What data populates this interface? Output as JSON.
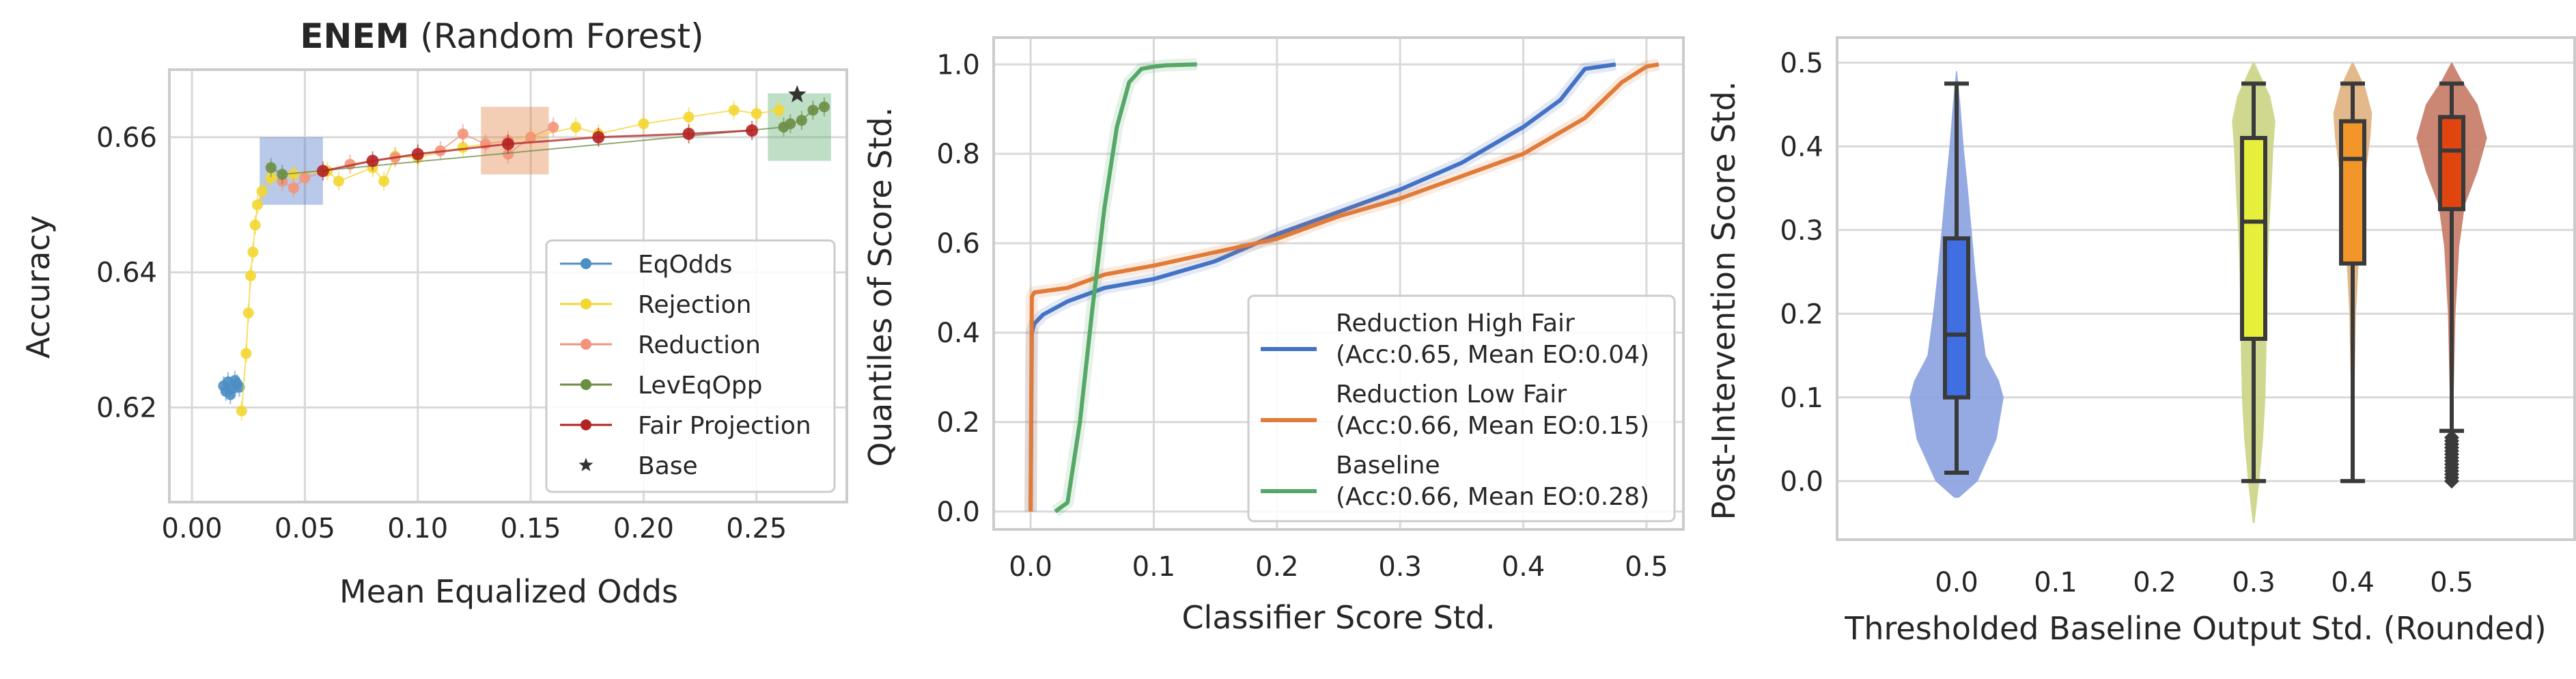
{
  "chart_data": [
    {
      "type": "scatter",
      "title_bold": "ENEM",
      "title_rest": " (Random Forest)",
      "xlabel": "Mean Equalized Odds",
      "ylabel": "Accuracy",
      "xlim": [
        -0.01,
        0.29
      ],
      "ylim": [
        0.606,
        0.67
      ],
      "xticks": [
        "0.00",
        "0.05",
        "0.10",
        "0.15",
        "0.20",
        "0.25"
      ],
      "yticks": [
        "0.62",
        "0.64",
        "0.66"
      ],
      "grid": true,
      "legend_position": "lower-right",
      "series": [
        {
          "name": "EqOdds",
          "color": "#4c8fc4",
          "marker": "circle",
          "points": [
            [
              0.014,
              0.6232
            ],
            [
              0.016,
              0.6238
            ],
            [
              0.018,
              0.6228
            ],
            [
              0.02,
              0.6235
            ],
            [
              0.015,
              0.6224
            ],
            [
              0.019,
              0.624
            ],
            [
              0.021,
              0.623
            ],
            [
              0.017,
              0.6219
            ]
          ]
        },
        {
          "name": "Rejection",
          "color": "#f3d631",
          "marker": "circle",
          "points": [
            [
              0.022,
              0.6195
            ],
            [
              0.024,
              0.628
            ],
            [
              0.025,
              0.634
            ],
            [
              0.026,
              0.6395
            ],
            [
              0.027,
              0.643
            ],
            [
              0.028,
              0.647
            ],
            [
              0.029,
              0.65
            ],
            [
              0.031,
              0.652
            ],
            [
              0.035,
              0.654
            ],
            [
              0.045,
              0.6545
            ],
            [
              0.06,
              0.655
            ],
            [
              0.08,
              0.6555
            ],
            [
              0.1,
              0.657
            ],
            [
              0.12,
              0.6585
            ],
            [
              0.15,
              0.66
            ],
            [
              0.17,
              0.6615
            ],
            [
              0.2,
              0.662
            ],
            [
              0.22,
              0.663
            ],
            [
              0.24,
              0.664
            ],
            [
              0.25,
              0.6635
            ],
            [
              0.26,
              0.664
            ],
            [
              0.065,
              0.6535
            ],
            [
              0.085,
              0.6535
            ],
            [
              0.09,
              0.6572
            ],
            [
              0.18,
              0.6605
            ]
          ]
        },
        {
          "name": "Reduction",
          "color": "#f2937a",
          "marker": "circle",
          "points": [
            [
              0.04,
              0.6535
            ],
            [
              0.045,
              0.6525
            ],
            [
              0.05,
              0.654
            ],
            [
              0.07,
              0.656
            ],
            [
              0.09,
              0.657
            ],
            [
              0.11,
              0.658
            ],
            [
              0.13,
              0.659
            ],
            [
              0.14,
              0.6595
            ],
            [
              0.15,
              0.66
            ],
            [
              0.12,
              0.6605
            ],
            [
              0.16,
              0.6615
            ],
            [
              0.14,
              0.6575
            ]
          ]
        },
        {
          "name": "LevEqOpp",
          "color": "#6b8e45",
          "marker": "circle",
          "points": [
            [
              0.035,
              0.6555
            ],
            [
              0.04,
              0.6545
            ],
            [
              0.262,
              0.6615
            ],
            [
              0.265,
              0.662
            ],
            [
              0.27,
              0.6625
            ],
            [
              0.275,
              0.664
            ],
            [
              0.28,
              0.6645
            ]
          ]
        },
        {
          "name": "Fair Projection",
          "color": "#b22222",
          "marker": "circle",
          "points": [
            [
              0.058,
              0.655
            ],
            [
              0.08,
              0.6565
            ],
            [
              0.1,
              0.6575
            ],
            [
              0.14,
              0.659
            ],
            [
              0.18,
              0.66
            ],
            [
              0.22,
              0.6605
            ],
            [
              0.248,
              0.661
            ]
          ]
        },
        {
          "name": "Base",
          "color": "#333333",
          "marker": "star",
          "points": [
            [
              0.268,
              0.6663
            ]
          ]
        }
      ],
      "annotations": [
        {
          "kind": "box",
          "color": "#4472c4",
          "x": [
            0.03,
            0.058
          ],
          "y": [
            0.65,
            0.66
          ]
        },
        {
          "kind": "box",
          "color": "#e07b39",
          "x": [
            0.128,
            0.158
          ],
          "y": [
            0.6545,
            0.6645
          ]
        },
        {
          "kind": "box",
          "color": "#55a868",
          "x": [
            0.255,
            0.283
          ],
          "y": [
            0.6565,
            0.6665
          ]
        }
      ]
    },
    {
      "type": "line",
      "xlabel": "Classifier Score Std.",
      "ylabel": "Quantiles of Score Std.",
      "xlim": [
        -0.03,
        0.53
      ],
      "ylim": [
        -0.04,
        1.06
      ],
      "xticks": [
        "0.0",
        "0.1",
        "0.2",
        "0.3",
        "0.4",
        "0.5"
      ],
      "yticks": [
        "0.0",
        "0.2",
        "0.4",
        "0.6",
        "0.8",
        "1.0"
      ],
      "grid": true,
      "legend_position": "lower-right",
      "series": [
        {
          "name_line1": "Reduction High Fair",
          "name_line2": "(Acc:0.65, Mean EO:0.04)",
          "color": "#4472c4",
          "x": [
            0,
            0.001,
            0.003,
            0.01,
            0.03,
            0.06,
            0.1,
            0.15,
            0.2,
            0.25,
            0.3,
            0.35,
            0.4,
            0.43,
            0.45,
            0.475
          ],
          "y": [
            0,
            0.4,
            0.42,
            0.44,
            0.47,
            0.5,
            0.52,
            0.56,
            0.62,
            0.67,
            0.72,
            0.78,
            0.86,
            0.92,
            0.99,
            1.0
          ]
        },
        {
          "name_line1": "Reduction Low Fair",
          "name_line2": "(Acc:0.66, Mean EO:0.15)",
          "color": "#e07b39",
          "x": [
            0,
            0.001,
            0.003,
            0.03,
            0.06,
            0.1,
            0.15,
            0.2,
            0.25,
            0.3,
            0.35,
            0.4,
            0.45,
            0.48,
            0.5,
            0.51
          ],
          "y": [
            0,
            0.48,
            0.49,
            0.5,
            0.53,
            0.55,
            0.58,
            0.61,
            0.66,
            0.7,
            0.75,
            0.8,
            0.88,
            0.96,
            0.995,
            1.0
          ]
        },
        {
          "name_line1": "Baseline",
          "name_line2": "(Acc:0.66, Mean EO:0.28)",
          "color": "#55a868",
          "x": [
            0.02,
            0.03,
            0.04,
            0.05,
            0.06,
            0.07,
            0.08,
            0.09,
            0.1,
            0.11,
            0.135
          ],
          "y": [
            0.0,
            0.02,
            0.2,
            0.45,
            0.68,
            0.86,
            0.96,
            0.99,
            0.995,
            0.998,
            1.0
          ]
        }
      ]
    },
    {
      "type": "violin",
      "xlabel": "Thresholded Baseline Output Std. (Rounded)",
      "ylabel": "Post-Intervention Score Std.",
      "categories": [
        "0.0",
        "0.1",
        "0.2",
        "0.3",
        "0.4",
        "0.5"
      ],
      "ylim": [
        -0.07,
        0.53
      ],
      "yticks": [
        "0.0",
        "0.1",
        "0.2",
        "0.3",
        "0.4",
        "0.5"
      ],
      "grid": true,
      "groups": [
        {
          "category": "0.0",
          "violin_color": "#8fa5e0",
          "box_color": "#3f6fe0",
          "min": 0.01,
          "q1": 0.1,
          "median": 0.175,
          "q3": 0.29,
          "max": 0.475,
          "density_y": [
            -0.02,
            0.0,
            0.05,
            0.1,
            0.12,
            0.15,
            0.2,
            0.25,
            0.3,
            0.35,
            0.4,
            0.45,
            0.49
          ],
          "density_w": [
            0.05,
            0.45,
            0.85,
            1.0,
            0.9,
            0.62,
            0.5,
            0.4,
            0.32,
            0.24,
            0.15,
            0.08,
            0.01
          ],
          "width_frac": 0.95
        },
        {
          "category": "0.3",
          "violin_color": "#cdd68a",
          "box_color": "#e6ef3a",
          "min": 0.0,
          "q1": 0.17,
          "median": 0.31,
          "q3": 0.41,
          "max": 0.475,
          "density_y": [
            -0.05,
            0.0,
            0.05,
            0.1,
            0.15,
            0.2,
            0.25,
            0.3,
            0.35,
            0.4,
            0.43,
            0.46,
            0.5
          ],
          "density_w": [
            0.02,
            0.12,
            0.2,
            0.25,
            0.27,
            0.28,
            0.3,
            0.33,
            0.38,
            0.42,
            0.46,
            0.35,
            0.02
          ],
          "width_frac": 0.95
        },
        {
          "category": "0.4",
          "violin_color": "#e2b585",
          "box_color": "#f2962a",
          "min": 0.0,
          "q1": 0.26,
          "median": 0.385,
          "q3": 0.43,
          "max": 0.475,
          "density_y": [
            0.0,
            0.1,
            0.2,
            0.28,
            0.33,
            0.38,
            0.41,
            0.44,
            0.47,
            0.5
          ],
          "density_w": [
            0.02,
            0.04,
            0.08,
            0.16,
            0.24,
            0.34,
            0.42,
            0.46,
            0.3,
            0.02
          ],
          "width_frac": 0.85
        },
        {
          "category": "0.5",
          "violin_color": "#c97f6d",
          "box_color": "#e0440f",
          "min": 0.06,
          "q1": 0.325,
          "median": 0.395,
          "q3": 0.435,
          "max": 0.475,
          "density_y": [
            0.0,
            0.05,
            0.1,
            0.2,
            0.28,
            0.33,
            0.37,
            0.41,
            0.45,
            0.48,
            0.5
          ],
          "density_w": [
            0.01,
            0.02,
            0.04,
            0.08,
            0.16,
            0.28,
            0.55,
            0.75,
            0.55,
            0.2,
            0.01
          ],
          "width_frac": 0.95,
          "outliers_from": 0.0,
          "outliers_to": 0.055
        }
      ]
    }
  ]
}
